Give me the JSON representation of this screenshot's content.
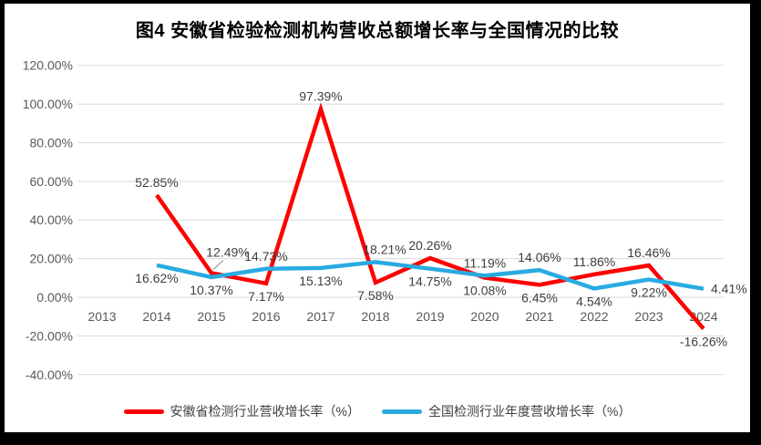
{
  "frame": {
    "background_color": "#FFFFFF",
    "border_color": "#000000"
  },
  "chart_data": {
    "type": "line",
    "title": "图4 安徽省检验检测机构营收总额增长率与全国情况的比较",
    "xlabel": "",
    "ylabel": "",
    "categories": [
      "2013",
      "2014",
      "2015",
      "2016",
      "2017",
      "2018",
      "2019",
      "2020",
      "2021",
      "2022",
      "2023",
      "2024"
    ],
    "series": [
      {
        "name": "安徽省检测行业营收增长率（%）",
        "color": "#FE0000",
        "values": [
          null,
          52.85,
          12.49,
          7.17,
          97.39,
          7.58,
          20.26,
          10.08,
          6.45,
          11.86,
          16.46,
          -16.26
        ],
        "label_positions": [
          null,
          "above",
          "callout-above",
          "below",
          "above",
          "below",
          "above",
          "below",
          "below",
          "above",
          "above",
          "below"
        ]
      },
      {
        "name": "全国检测行业年度营收增长率（%）",
        "color": "#29ABE2",
        "values": [
          null,
          16.62,
          10.37,
          14.73,
          15.13,
          18.21,
          14.75,
          11.19,
          14.06,
          4.54,
          9.22,
          4.41
        ],
        "label_positions": [
          null,
          "below",
          "below",
          "above",
          "below",
          "above-right",
          "below",
          "above",
          "above",
          "below",
          "below",
          "right"
        ]
      }
    ],
    "ylim": [
      -40,
      120
    ],
    "ytick_step": 20,
    "ytick_labels": [
      "120.00%",
      "100.00%",
      "80.00%",
      "60.00%",
      "40.00%",
      "20.00%",
      "0.00%",
      "-20.00%",
      "-40.00%"
    ],
    "data_label_format": "0.00%",
    "grid": true,
    "gridline_color": "#D9D9D9",
    "callout_line_color": "#A6A6A6",
    "axis_text_color": "#595959",
    "data_label_color": "#3F3F3F",
    "legend_position": "bottom",
    "line_width": 4.5
  }
}
